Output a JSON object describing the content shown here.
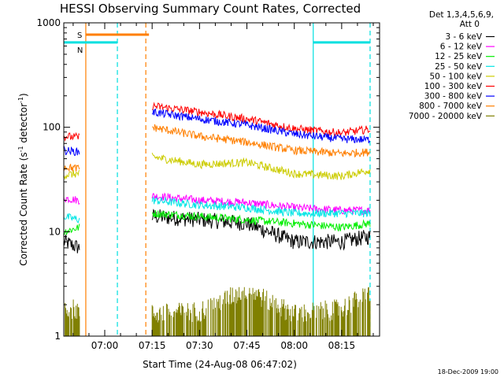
{
  "chart_data": {
    "type": "line",
    "title": "HESSI Observing Summary Count Rates, Corrected",
    "xlabel": "Start Time (24-Aug-08 06:47:02)",
    "ylabel": "Corrected Count Rate (s⁻¹ detector⁻¹)",
    "ylabel_main": "Corrected Count Rate (s",
    "ylabel_sup1": "-1",
    "ylabel_mid": " detector",
    "ylabel_sup2": "-1",
    "ylabel_end": ")",
    "y_scale": "log",
    "ylim": [
      1,
      1000
    ],
    "xlim": [
      "06:47:02",
      "08:27:00"
    ],
    "x_ticks": [
      "07:00",
      "07:15",
      "07:30",
      "07:45",
      "08:00",
      "08:15"
    ],
    "y_ticks": [
      "1",
      "10",
      "100",
      "1000"
    ],
    "legend_header": [
      "Det 1,3,4,5,6,9,",
      "Att 0"
    ],
    "legend_position": "right",
    "flags": [
      {
        "label": "S",
        "color": "#ff7f00",
        "x_start": "06:54",
        "x_end": "07:14",
        "y": 770,
        "style": "solid"
      },
      {
        "label": "N",
        "color": "#00e0e0",
        "x_start": "06:47",
        "x_end": "07:04",
        "y": 650,
        "style": "solid"
      },
      {
        "label": "",
        "color": "#00e0e0",
        "x_start": "08:06",
        "x_end": "08:24",
        "y": 650,
        "style": "solid"
      }
    ],
    "vlines": [
      {
        "x": "06:54",
        "color": "#ff7f00",
        "style": "solid"
      },
      {
        "x": "07:04",
        "color": "#00e0e0",
        "style": "dashed"
      },
      {
        "x": "07:13",
        "color": "#ff7f00",
        "style": "dashed"
      },
      {
        "x": "08:06",
        "color": "#00e0e0",
        "style": "solid"
      },
      {
        "x": "08:24",
        "color": "#00e0e0",
        "style": "dashed"
      }
    ],
    "series": [
      {
        "name": "3 - 6 keV",
        "color": "#000000",
        "seg1": {
          "x": [
            "06:47",
            "06:52"
          ],
          "y": [
            8,
            7
          ]
        },
        "seg2": {
          "x": [
            "07:15",
            "07:30",
            "07:45",
            "08:00",
            "08:15",
            "08:24"
          ],
          "y": [
            14,
            13,
            12,
            8,
            8,
            9
          ]
        }
      },
      {
        "name": "6 - 12 keV",
        "color": "#ff00ff",
        "seg1": {
          "x": [
            "06:47",
            "06:52"
          ],
          "y": [
            21,
            20
          ]
        },
        "seg2": {
          "x": [
            "07:15",
            "07:30",
            "07:45",
            "08:00",
            "08:15",
            "08:24"
          ],
          "y": [
            22,
            20,
            19,
            17,
            16,
            16
          ]
        }
      },
      {
        "name": "12 - 25 keV",
        "color": "#00ee00",
        "seg1": {
          "x": [
            "06:47",
            "06:52"
          ],
          "y": [
            10,
            11
          ]
        },
        "seg2": {
          "x": [
            "07:15",
            "07:30",
            "07:45",
            "08:00",
            "08:15",
            "08:24"
          ],
          "y": [
            15,
            14,
            13,
            12,
            11,
            12
          ]
        }
      },
      {
        "name": "25 - 50 keV",
        "color": "#00e5e5",
        "seg1": {
          "x": [
            "06:47",
            "06:52"
          ],
          "y": [
            14,
            13
          ]
        },
        "seg2": {
          "x": [
            "07:15",
            "07:30",
            "07:45",
            "08:00",
            "08:15",
            "08:24"
          ],
          "y": [
            20,
            18,
            17,
            15,
            15,
            15
          ]
        }
      },
      {
        "name": "50 - 100 keV",
        "color": "#cccc00",
        "seg1": {
          "x": [
            "06:47",
            "06:52"
          ],
          "y": [
            35,
            36
          ]
        },
        "seg2": {
          "x": [
            "07:15",
            "07:30",
            "07:45",
            "08:00",
            "08:15",
            "08:24"
          ],
          "y": [
            52,
            44,
            46,
            36,
            34,
            39
          ]
        }
      },
      {
        "name": "100 - 300 keV",
        "color": "#ff0000",
        "seg1": {
          "x": [
            "06:47",
            "06:52"
          ],
          "y": [
            82,
            80
          ]
        },
        "seg2": {
          "x": [
            "07:15",
            "07:30",
            "07:45",
            "08:00",
            "08:15",
            "08:24"
          ],
          "y": [
            160,
            140,
            120,
            97,
            88,
            96
          ]
        }
      },
      {
        "name": "300 - 800 keV",
        "color": "#0000ff",
        "seg1": {
          "x": [
            "06:47",
            "06:52"
          ],
          "y": [
            60,
            58
          ]
        },
        "seg2": {
          "x": [
            "07:15",
            "07:30",
            "07:45",
            "08:00",
            "08:15",
            "08:24"
          ],
          "y": [
            140,
            120,
            105,
            86,
            77,
            76
          ]
        }
      },
      {
        "name": "800 - 7000 keV",
        "color": "#ff7f00",
        "seg1": {
          "x": [
            "06:47",
            "06:52"
          ],
          "y": [
            42,
            40
          ]
        },
        "seg2": {
          "x": [
            "07:15",
            "07:30",
            "07:45",
            "08:00",
            "08:15",
            "08:24"
          ],
          "y": [
            100,
            82,
            72,
            60,
            56,
            58
          ]
        }
      },
      {
        "name": "7000 - 20000 keV",
        "color": "#808000",
        "seg1": {
          "x": [
            "06:47",
            "06:52"
          ],
          "y": [
            1.8,
            1.6
          ]
        },
        "seg2": {
          "x": [
            "07:15",
            "07:30",
            "07:45",
            "08:00",
            "08:15",
            "08:24"
          ],
          "y": [
            1.5,
            1.6,
            2.6,
            1.5,
            1.7,
            2.4
          ]
        }
      }
    ]
  },
  "footer": {
    "date": "18-Dec-2009 19:00"
  }
}
